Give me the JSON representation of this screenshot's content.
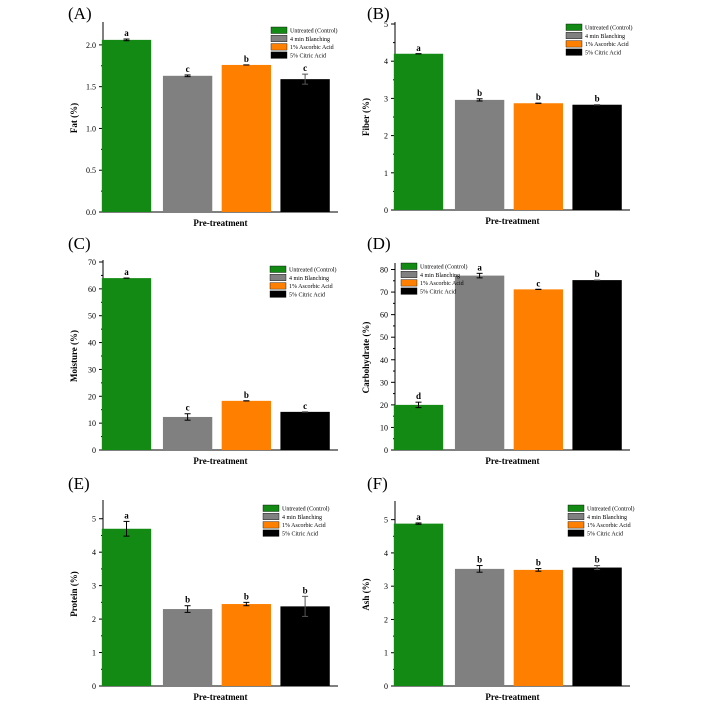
{
  "colors": {
    "control": "#138a13",
    "blanching": "#808080",
    "ascorbic": "#ff8000",
    "citric": "#000000"
  },
  "legend": [
    "Untreated (Control)",
    "4 min Blanching",
    "1% Ascorbic Acid",
    "5% Citric Acid"
  ],
  "chart_data": [
    {
      "type": "bar",
      "panel": "(A)",
      "xlabel": "Pre-treatment",
      "ylabel": "Fat (%)",
      "ylim": [
        0,
        2.25
      ],
      "yticks": [
        "0.0",
        "0.5",
        "1.0",
        "1.5",
        "2.0"
      ],
      "yticks_values": [
        0,
        0.5,
        1.0,
        1.5,
        2.0
      ],
      "categories": [
        "Untreated (Control)",
        "4 min Blanching",
        "1% Ascorbic Acid",
        "5% Citric Acid"
      ],
      "values": [
        2.06,
        1.63,
        1.76,
        1.59
      ],
      "errors": [
        0.01,
        0.01,
        0.0,
        0.06
      ],
      "significance": [
        "a",
        "c",
        "b",
        "c"
      ],
      "legend_position": "top-right"
    },
    {
      "type": "bar",
      "panel": "(B)",
      "xlabel": "Pre-treatment",
      "ylabel": "Fiber (%)",
      "ylim": [
        0,
        5
      ],
      "yticks": [
        "0",
        "1",
        "2",
        "3",
        "4",
        "5"
      ],
      "yticks_values": [
        0,
        1,
        2,
        3,
        4,
        5
      ],
      "categories": [
        "Untreated (Control)",
        "4 min Blanching",
        "1% Ascorbic Acid",
        "5% Citric Acid"
      ],
      "values": [
        4.2,
        2.96,
        2.87,
        2.83
      ],
      "errors": [
        0.0,
        0.03,
        0.0,
        0.0
      ],
      "significance": [
        "a",
        "b",
        "b",
        "b"
      ],
      "legend_position": "top-right"
    },
    {
      "type": "bar",
      "panel": "(C)",
      "xlabel": "Pre-treatment",
      "ylabel": "Moisture (%)",
      "ylim": [
        0,
        70
      ],
      "yticks": [
        "0",
        "10",
        "20",
        "30",
        "40",
        "50",
        "60",
        "70"
      ],
      "yticks_values": [
        0,
        10,
        20,
        30,
        40,
        50,
        60,
        70
      ],
      "categories": [
        "Untreated (Control)",
        "4 min Blanching",
        "1% Ascorbic Acid",
        "5% Citric Acid"
      ],
      "values": [
        64,
        12.3,
        18.3,
        14.2
      ],
      "errors": [
        0.0,
        1.2,
        0.0,
        0.0
      ],
      "significance": [
        "a",
        "c",
        "b",
        "c"
      ],
      "legend_position": "top-right"
    },
    {
      "type": "bar",
      "panel": "(D)",
      "xlabel": "Pre-treatment",
      "ylabel": "Carbohydrate (%)",
      "ylim": [
        0,
        82
      ],
      "yticks": [
        "0",
        "10",
        "20",
        "30",
        "40",
        "50",
        "60",
        "70",
        "80"
      ],
      "yticks_values": [
        0,
        10,
        20,
        30,
        40,
        50,
        60,
        70,
        80
      ],
      "categories": [
        "Untreated (Control)",
        "4 min Blanching",
        "1% Ascorbic Acid",
        "5% Citric Acid"
      ],
      "values": [
        20,
        77.3,
        71.2,
        75.3
      ],
      "errors": [
        1.2,
        1.0,
        0.0,
        0.0
      ],
      "significance": [
        "d",
        "a",
        "c",
        "b"
      ],
      "legend_position": "top-left"
    },
    {
      "type": "bar",
      "panel": "(E)",
      "xlabel": "Pre-treatment",
      "ylabel": "Protein (%)",
      "ylim": [
        0,
        5.5
      ],
      "yticks": [
        "0",
        "1",
        "2",
        "3",
        "4",
        "5"
      ],
      "yticks_values": [
        0,
        1,
        2,
        3,
        4,
        5
      ],
      "categories": [
        "Untreated (Control)",
        "4 min Blanching",
        "1% Ascorbic Acid",
        "5% Citric Acid"
      ],
      "values": [
        4.7,
        2.3,
        2.45,
        2.38
      ],
      "errors": [
        0.22,
        0.1,
        0.05,
        0.3
      ],
      "significance": [
        "a",
        "b",
        "b",
        "b"
      ],
      "legend_position": "top-right"
    },
    {
      "type": "bar",
      "panel": "(F)",
      "xlabel": "Pre-treatment",
      "ylabel": "Ash (%)",
      "ylim": [
        0,
        5.5
      ],
      "yticks": [
        "0",
        "1",
        "2",
        "3",
        "4",
        "5"
      ],
      "yticks_values": [
        0,
        1,
        2,
        3,
        4,
        5
      ],
      "categories": [
        "Untreated (Control)",
        "4 min Blanching",
        "1% Ascorbic Acid",
        "5% Citric Acid"
      ],
      "values": [
        4.88,
        3.52,
        3.49,
        3.56
      ],
      "errors": [
        0.02,
        0.1,
        0.04,
        0.06
      ],
      "significance": [
        "a",
        "b",
        "b",
        "b"
      ],
      "legend_position": "top-right"
    }
  ]
}
